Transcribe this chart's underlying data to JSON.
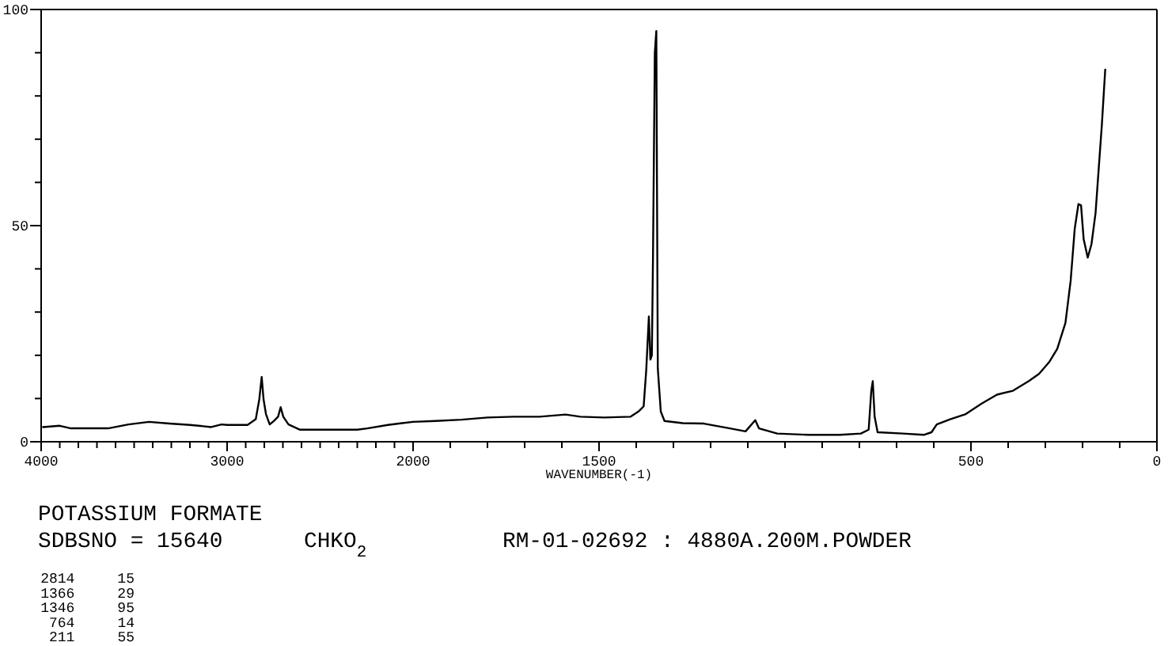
{
  "chart_data": [
    {
      "type": "line",
      "title": "POTASSIUM FORMATE",
      "x": [
        3990,
        3900,
        3840,
        3640,
        3530,
        3420,
        3310,
        3200,
        3085,
        3030,
        3000,
        2890,
        2846,
        2827,
        2814,
        2804,
        2791,
        2771,
        2749,
        2726,
        2712,
        2698,
        2670,
        2610,
        2470,
        2300,
        2246,
        2135,
        2000
      ],
      "series": [
        {
          "color": "#000000",
          "values": [
            3.4,
            3.7,
            3.1,
            3.1,
            4.0,
            4.6,
            4.2,
            3.9,
            3.4,
            4.0,
            3.9,
            3.9,
            5.2,
            9.8,
            15,
            9.8,
            6.4,
            4.0,
            4.8,
            5.8,
            8.0,
            5.8,
            4.0,
            2.8,
            2.8,
            2.8,
            3.1,
            3.9,
            4.6
          ]
        }
      ],
      "xlim": [
        4000,
        2000
      ],
      "xticks": [
        4000,
        {
          "value": 3900,
          "label": null
        },
        {
          "value": 3800,
          "label": null
        },
        {
          "value": 3700,
          "label": null
        },
        {
          "value": 3600,
          "label": null
        },
        {
          "value": 3500,
          "label": null
        },
        {
          "value": 3400,
          "label": null
        },
        {
          "value": 3300,
          "label": null
        },
        {
          "value": 3200,
          "label": null
        },
        {
          "value": 3100,
          "label": null
        },
        3000,
        {
          "value": 2900,
          "label": null
        },
        {
          "value": 2800,
          "label": null
        },
        {
          "value": 2700,
          "label": null
        },
        {
          "value": 2600,
          "label": null
        },
        {
          "value": 2500,
          "label": null
        },
        {
          "value": 2400,
          "label": null
        },
        {
          "value": 2300,
          "label": null
        },
        {
          "value": 2200,
          "label": null
        },
        {
          "value": 2100,
          "label": null
        },
        2000
      ],
      "ylim": [
        0,
        100
      ],
      "yticks": [
        0,
        {
          "value": 10,
          "label": null
        },
        {
          "value": 20,
          "label": null
        },
        {
          "value": 30,
          "label": null
        },
        {
          "value": 40,
          "label": null
        },
        50,
        {
          "value": 60,
          "label": null
        },
        {
          "value": 70,
          "label": null
        },
        {
          "value": 80,
          "label": null
        },
        {
          "value": 90,
          "label": null
        },
        100
      ],
      "annotations": [
        "SDBSNO = 15640",
        "CHKO$_{2}$",
        "RM-01-02692 : 4880A.200M.POWDER",
        "2814     15",
        "1366     29",
        "1346     95",
        "764     14",
        "211     55"
      ]
    },
    {
      "type": "line",
      "xlabel": "WAVENUMBER(-1)",
      "x": [
        2000,
        1940,
        1870,
        1800,
        1730,
        1660,
        1590,
        1550,
        1486,
        1415,
        1394,
        1380,
        1373,
        1366,
        1362,
        1358,
        1355,
        1350,
        1346,
        1342,
        1334,
        1324,
        1275,
        1218,
        1148,
        1106,
        1080,
        1070,
        1021,
        937,
        852,
        796,
        775,
        768,
        764,
        759,
        751,
        683,
        627,
        606,
        592,
        556,
        514,
        472,
        430,
        387,
        345,
        317,
        289,
        268,
        246,
        232,
        221,
        211,
        204,
        197,
        186,
        176,
        165,
        155,
        148,
        139
      ],
      "series": [
        {
          "color": "#000000",
          "values": [
            4.6,
            4.8,
            5.1,
            5.6,
            5.8,
            5.8,
            6.3,
            5.8,
            5.6,
            5.8,
            7.0,
            8.2,
            16.7,
            29,
            19,
            20,
            42,
            90,
            95,
            17,
            7.0,
            4.8,
            4.3,
            4.2,
            3.1,
            2.4,
            5.0,
            3.1,
            1.9,
            1.6,
            1.6,
            1.9,
            2.8,
            11.8,
            14,
            5.8,
            2.2,
            1.9,
            1.6,
            2.2,
            4.0,
            5.2,
            6.4,
            8.8,
            10.9,
            11.8,
            14.0,
            15.7,
            18.5,
            21.5,
            27.5,
            37.2,
            49.3,
            55,
            54.7,
            46.9,
            42.6,
            45.7,
            52.9,
            65.0,
            73.4,
            86.1
          ]
        }
      ],
      "xlim": [
        2000,
        0
      ],
      "xticks": [
        {
          "value": 2000,
          "label": null
        },
        {
          "value": 1900,
          "label": null
        },
        {
          "value": 1800,
          "label": null
        },
        {
          "value": 1700,
          "label": null
        },
        {
          "value": 1600,
          "label": null
        },
        1500,
        {
          "value": 1400,
          "label": null
        },
        {
          "value": 1300,
          "label": null
        },
        {
          "value": 1200,
          "label": null
        },
        {
          "value": 1100,
          "label": null
        },
        {
          "value": 1000,
          "label": null
        },
        {
          "value": 900,
          "label": null
        },
        {
          "value": 800,
          "label": null
        },
        {
          "value": 700,
          "label": null
        },
        {
          "value": 600,
          "label": null
        },
        500,
        {
          "value": 400,
          "label": null
        },
        {
          "value": 300,
          "label": null
        },
        {
          "value": 200,
          "label": null
        },
        {
          "value": 100,
          "label": null
        },
        0
      ],
      "ylim": [
        0,
        100
      ],
      "tick_labels": "x"
    }
  ]
}
